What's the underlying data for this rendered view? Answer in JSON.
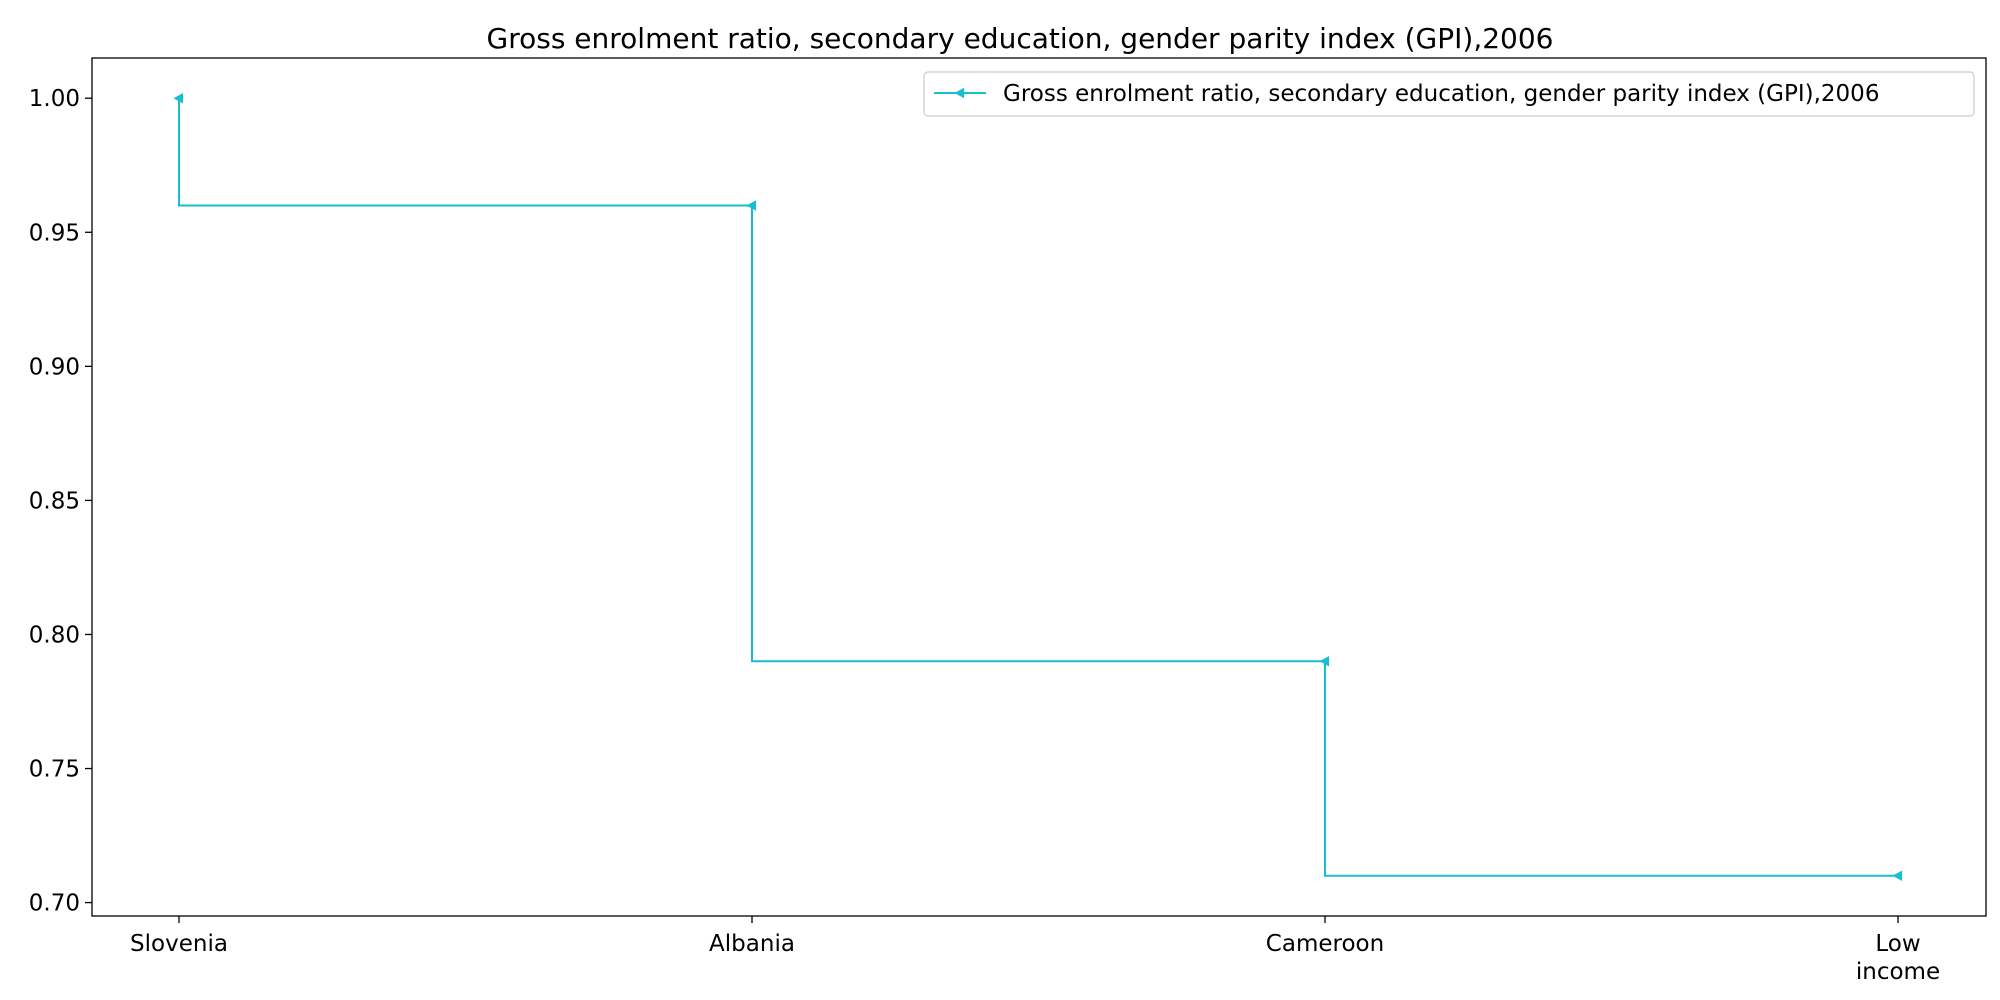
{
  "chart_data": {
    "type": "line",
    "drawstyle": "steps-pre",
    "title": "Gross enrolment ratio, secondary education, gender parity index (GPI),2006",
    "xlabel": "",
    "ylabel": "",
    "categories": [
      "Slovenia",
      "Albania",
      "Cameroon",
      "Low income"
    ],
    "category_lines": [
      [
        "Slovenia"
      ],
      [
        "Albania"
      ],
      [
        "Cameroon"
      ],
      [
        "Low",
        "income"
      ]
    ],
    "series": [
      {
        "name": "Gross enrolment ratio, secondary education, gender parity index (GPI),2006",
        "values": [
          1.0,
          0.96,
          0.79,
          0.71
        ],
        "color": "#17becf",
        "marker": "triangle-left"
      }
    ],
    "ylim": [
      0.695,
      1.015
    ],
    "yticks": [
      0.7,
      0.75,
      0.8,
      0.85,
      0.9,
      0.95,
      1.0
    ],
    "ytick_labels": [
      "0.70",
      "0.75",
      "0.80",
      "0.85",
      "0.90",
      "0.95",
      "1.00"
    ],
    "grid": false,
    "legend_position": "top-right"
  }
}
